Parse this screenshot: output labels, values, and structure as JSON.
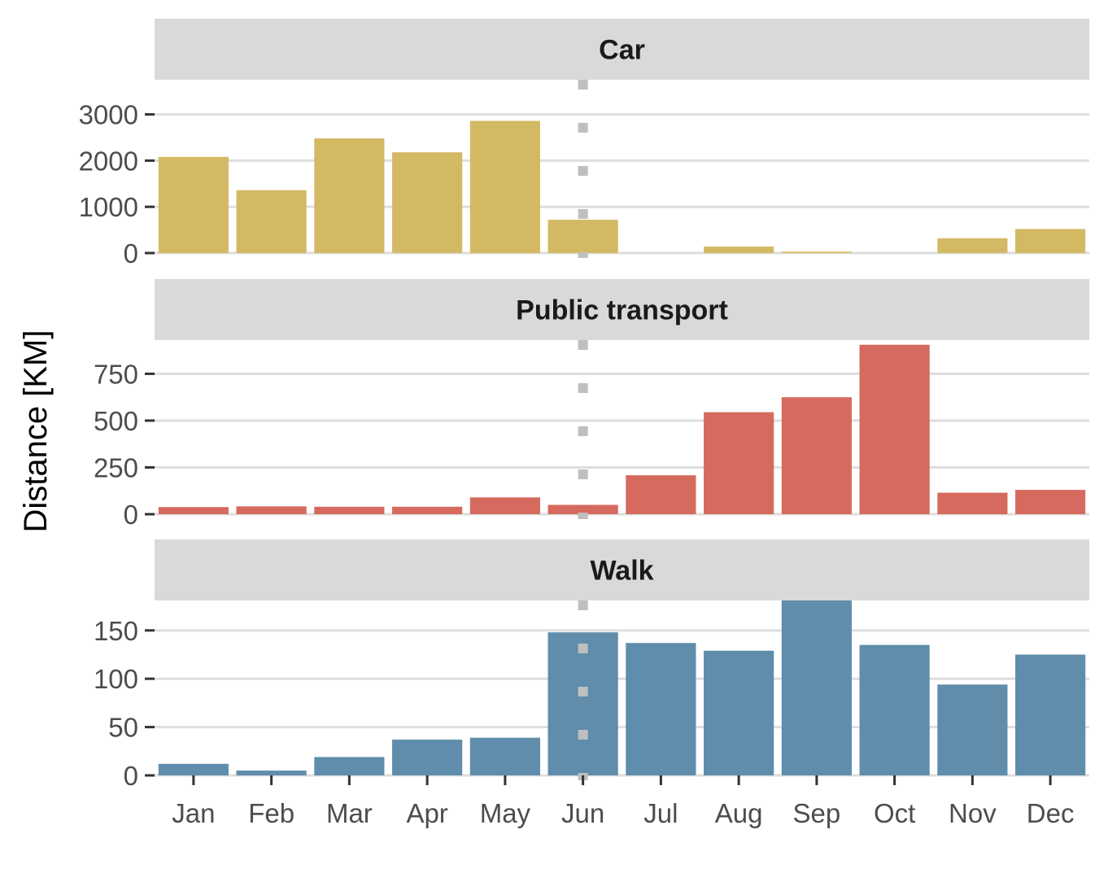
{
  "chart_data": {
    "type": "bar",
    "layout": "faceted-vertical",
    "ylabel": "Distance [KM]",
    "xlabel": "",
    "categories": [
      "Jan",
      "Feb",
      "Mar",
      "Apr",
      "May",
      "Jun",
      "Jul",
      "Aug",
      "Sep",
      "Oct",
      "Nov",
      "Dec"
    ],
    "reference_line": {
      "category": "Jun",
      "style": "dotted",
      "color": "#bfbfbf"
    },
    "grid": true,
    "legend": "none",
    "facets": [
      {
        "name": "Car",
        "color": "#d4b965",
        "ylim": [
          0,
          3750
        ],
        "yticks": [
          0,
          1000,
          2000,
          3000
        ],
        "values": [
          2080,
          1360,
          2480,
          2180,
          2860,
          720,
          0,
          140,
          30,
          0,
          320,
          520
        ]
      },
      {
        "name": "Public transport",
        "color": "#d66a5e",
        "ylim": [
          0,
          930
        ],
        "yticks": [
          0,
          250,
          500,
          750
        ],
        "values": [
          38,
          42,
          40,
          40,
          90,
          50,
          208,
          545,
          625,
          905,
          115,
          130
        ]
      },
      {
        "name": "Walk",
        "color": "#5f8dab",
        "ylim": [
          0,
          181
        ],
        "yticks": [
          0,
          50,
          100,
          150
        ],
        "values": [
          12,
          5,
          19,
          37,
          39,
          148,
          137,
          129,
          181,
          135,
          94,
          125
        ]
      }
    ]
  }
}
